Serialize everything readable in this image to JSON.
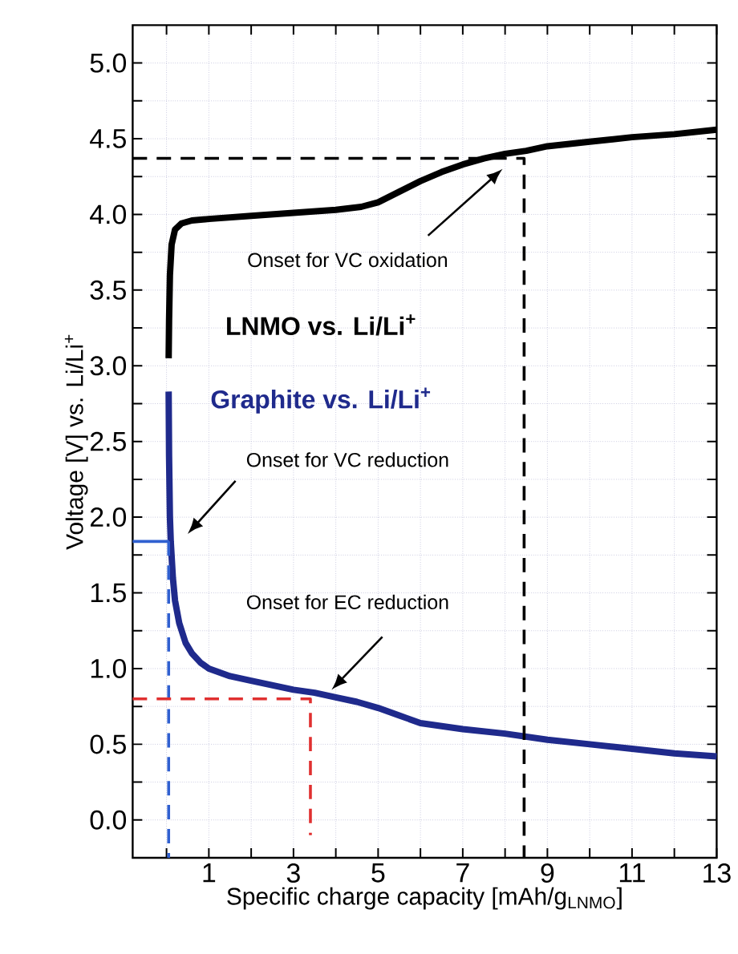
{
  "chart_data": {
    "type": "line",
    "xlabel": "Specific charge capacity [mAh/g$_{LNMO}$]",
    "ylabel": "Voltage [V] vs. Li/Li$^{+}$",
    "xlim": [
      -0.8,
      13
    ],
    "ylim": [
      -0.25,
      5.25
    ],
    "xticks": [
      {
        "value": 0,
        "label": null
      },
      1,
      {
        "value": 2,
        "label": null
      },
      3,
      {
        "value": 4,
        "label": null
      },
      5,
      {
        "value": 6,
        "label": null
      },
      7,
      {
        "value": 8,
        "label": null
      },
      9,
      {
        "value": 10,
        "label": null
      },
      11,
      {
        "value": 12,
        "label": null
      },
      13
    ],
    "yticks": [
      {
        "value": 0,
        "label": "0.0"
      },
      {
        "value": 0.25,
        "label": null
      },
      {
        "value": 0.5,
        "label": "0.5"
      },
      {
        "value": 0.75,
        "label": null
      },
      {
        "value": 1,
        "label": "1.0"
      },
      {
        "value": 1.25,
        "label": null
      },
      {
        "value": 1.5,
        "label": "1.5"
      },
      {
        "value": 1.75,
        "label": null
      },
      {
        "value": 2,
        "label": "2.0"
      },
      {
        "value": 2.25,
        "label": null
      },
      {
        "value": 2.5,
        "label": "2.5"
      },
      {
        "value": 2.75,
        "label": null
      },
      {
        "value": 3,
        "label": "3.0"
      },
      {
        "value": 3.25,
        "label": null
      },
      {
        "value": 3.5,
        "label": "3.5"
      },
      {
        "value": 3.75,
        "label": null
      },
      {
        "value": 4,
        "label": "4.0"
      },
      {
        "value": 4.25,
        "label": null
      },
      {
        "value": 4.5,
        "label": "4.5"
      },
      {
        "value": 4.75,
        "label": null
      },
      {
        "value": 5,
        "label": "5.0"
      }
    ],
    "grid": true,
    "series": [
      {
        "name": "LNMO vs. Li/Li$^{+}$",
        "color": "#000000",
        "line_style": "solid",
        "x": [
          0.05,
          0.06,
          0.08,
          0.12,
          0.2,
          0.35,
          0.6,
          1,
          2,
          3,
          4,
          4.6,
          5,
          5.5,
          6,
          6.5,
          7,
          7.5,
          8,
          8.5,
          9,
          10,
          11,
          12,
          13
        ],
        "values": [
          3.05,
          3.3,
          3.6,
          3.8,
          3.9,
          3.94,
          3.96,
          3.97,
          3.99,
          4.01,
          4.03,
          4.05,
          4.08,
          4.15,
          4.22,
          4.28,
          4.33,
          4.37,
          4.4,
          4.42,
          4.45,
          4.48,
          4.51,
          4.53,
          4.56
        ]
      },
      {
        "name": "Graphite vs. Li/Li$^{+}$",
        "color": "#1f2a8c",
        "line_style": "solid",
        "x": [
          0.05,
          0.06,
          0.08,
          0.1,
          0.15,
          0.2,
          0.3,
          0.45,
          0.6,
          0.8,
          1,
          1.5,
          2,
          2.5,
          3,
          3.5,
          4,
          4.5,
          5,
          5.5,
          6,
          7,
          8,
          9,
          10,
          11,
          12,
          13
        ],
        "values": [
          2.83,
          2.4,
          2.0,
          1.84,
          1.6,
          1.45,
          1.3,
          1.17,
          1.1,
          1.04,
          1.0,
          0.95,
          0.92,
          0.89,
          0.86,
          0.84,
          0.81,
          0.78,
          0.74,
          0.69,
          0.64,
          0.6,
          0.57,
          0.53,
          0.5,
          0.47,
          0.44,
          0.42
        ]
      },
      {
        "color": "#000000",
        "line_style": "dashed",
        "x": [
          -0.8,
          8.45,
          8.45
        ],
        "values": [
          4.37,
          4.37,
          -0.25
        ]
      },
      {
        "color": "#3060d0",
        "line_style": "solid",
        "x": [
          -0.8,
          0.06
        ],
        "values": [
          1.84,
          1.84
        ]
      },
      {
        "color": "#3060d0",
        "line_style": "dashed",
        "x": [
          0.05,
          0.05
        ],
        "values": [
          1.84,
          -0.25
        ]
      },
      {
        "color": "#e03030",
        "line_style": "dashed",
        "x": [
          -0.8,
          3.4,
          3.4
        ],
        "values": [
          0.8,
          0.8,
          -0.1
        ]
      }
    ],
    "annotations": [
      "Onset for VC oxidation",
      "Onset for VC reduction",
      "Onset for EC reduction"
    ]
  }
}
